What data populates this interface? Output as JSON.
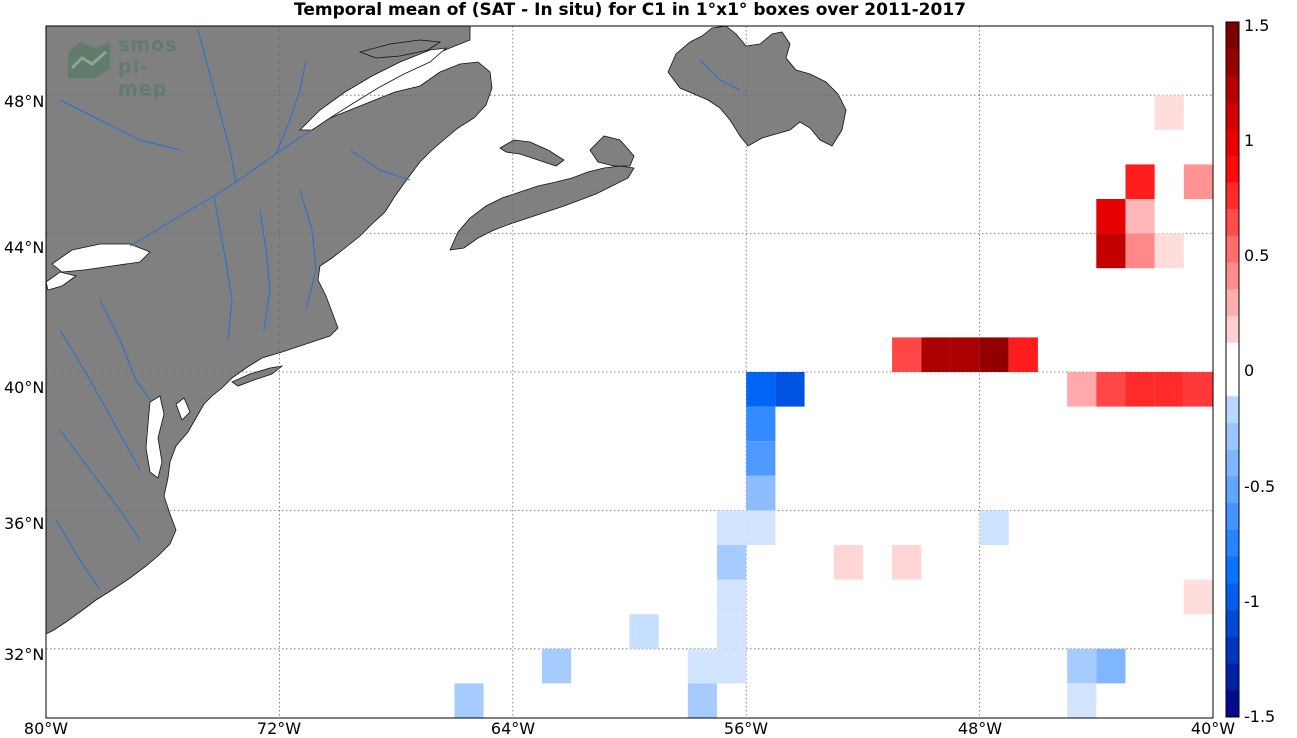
{
  "title": "Temporal mean of (SAT - In situ) for C1 in 1°x1° boxes over 2011-2017",
  "logo": {
    "line1": "smos",
    "line2": "pi-mep"
  },
  "latitude_labels": [
    "48°N",
    "44°N",
    "40°N",
    "36°N",
    "32°N"
  ],
  "longitude_labels": [
    "80°W",
    "72°W",
    "64°W",
    "56°W",
    "48°W",
    "40°W"
  ],
  "colorbar": {
    "labels": [
      "1.5",
      "1",
      "0.5",
      "0",
      "-0.5",
      "-1",
      "-1.5"
    ],
    "min": -1.5,
    "max": 1.5,
    "steps": 26
  },
  "colors": {
    "land": "#808080",
    "ocean": "#ffffff",
    "rivers": "#1e73d8",
    "grid": "#666666"
  },
  "map_extent": {
    "lon_min": -80,
    "lon_max": -40,
    "lat_min": 30,
    "lat_max": 50
  },
  "chart_data": {
    "type": "heatmap",
    "title": "Temporal mean of (SAT - In situ) for C1 in 1°x1° boxes over 2011-2017",
    "units": "",
    "cells": [
      {
        "lat": 47.5,
        "lon": -41.5,
        "value": 0.12
      },
      {
        "lat": 45.5,
        "lon": -42.5,
        "value": 0.8
      },
      {
        "lat": 45.5,
        "lon": -40.5,
        "value": 0.38
      },
      {
        "lat": 44.5,
        "lon": -43.5,
        "value": 1.0
      },
      {
        "lat": 44.5,
        "lon": -42.5,
        "value": 0.25
      },
      {
        "lat": 43.5,
        "lon": -43.5,
        "value": 1.15
      },
      {
        "lat": 43.5,
        "lon": -42.5,
        "value": 0.42
      },
      {
        "lat": 43.5,
        "lon": -41.5,
        "value": 0.12
      },
      {
        "lat": 40.5,
        "lon": -50.5,
        "value": 0.65
      },
      {
        "lat": 40.5,
        "lon": -49.5,
        "value": 1.25
      },
      {
        "lat": 40.5,
        "lon": -48.5,
        "value": 1.25
      },
      {
        "lat": 40.5,
        "lon": -47.5,
        "value": 1.35
      },
      {
        "lat": 40.5,
        "lon": -46.5,
        "value": 0.8
      },
      {
        "lat": 39.5,
        "lon": -44.5,
        "value": 0.3
      },
      {
        "lat": 39.5,
        "lon": -43.5,
        "value": 0.65
      },
      {
        "lat": 39.5,
        "lon": -42.5,
        "value": 0.75
      },
      {
        "lat": 39.5,
        "lon": -41.5,
        "value": 0.75
      },
      {
        "lat": 39.5,
        "lon": -40.5,
        "value": 0.7
      },
      {
        "lat": 39.5,
        "lon": -55.5,
        "value": -0.95
      },
      {
        "lat": 39.5,
        "lon": -54.5,
        "value": -1.05
      },
      {
        "lat": 38.5,
        "lon": -55.5,
        "value": -0.7
      },
      {
        "lat": 37.5,
        "lon": -55.5,
        "value": -0.6
      },
      {
        "lat": 36.5,
        "lon": -55.5,
        "value": -0.35
      },
      {
        "lat": 35.5,
        "lon": -56.5,
        "value": -0.08
      },
      {
        "lat": 35.5,
        "lon": -55.5,
        "value": -0.08
      },
      {
        "lat": 35.5,
        "lon": -47.5,
        "value": -0.1
      },
      {
        "lat": 34.5,
        "lon": -56.5,
        "value": -0.25
      },
      {
        "lat": 34.5,
        "lon": -52.5,
        "value": 0.15
      },
      {
        "lat": 34.5,
        "lon": -50.5,
        "value": 0.15
      },
      {
        "lat": 33.5,
        "lon": -56.5,
        "value": -0.08
      },
      {
        "lat": 33.5,
        "lon": -40.5,
        "value": 0.12
      },
      {
        "lat": 32.5,
        "lon": -56.5,
        "value": -0.08
      },
      {
        "lat": 32.5,
        "lon": -59.5,
        "value": -0.12
      },
      {
        "lat": 31.5,
        "lon": -62.5,
        "value": -0.25
      },
      {
        "lat": 31.5,
        "lon": -57.5,
        "value": -0.08
      },
      {
        "lat": 31.5,
        "lon": -56.5,
        "value": -0.08
      },
      {
        "lat": 31.5,
        "lon": -44.5,
        "value": -0.25
      },
      {
        "lat": 31.5,
        "lon": -43.5,
        "value": -0.4
      },
      {
        "lat": 30.5,
        "lon": -65.5,
        "value": -0.25
      },
      {
        "lat": 30.5,
        "lon": -57.5,
        "value": -0.25
      },
      {
        "lat": 30.5,
        "lon": -44.5,
        "value": -0.08
      }
    ]
  }
}
